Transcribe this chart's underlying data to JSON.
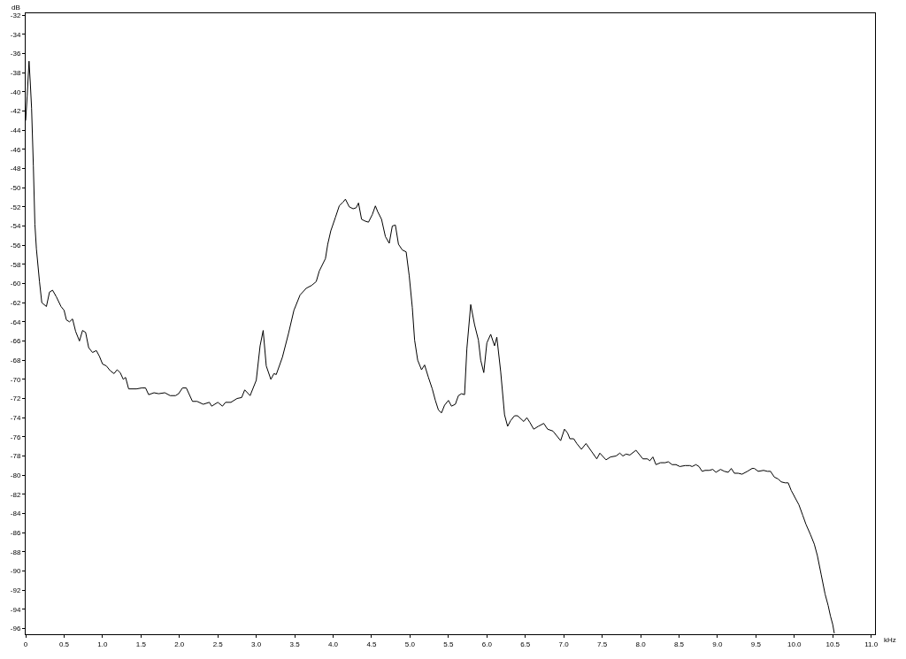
{
  "chart_data": {
    "type": "line",
    "xlabel": "kHz",
    "ylabel": "dB",
    "x": [
      0,
      0.02,
      0.044,
      0.06,
      0.077,
      0.1,
      0.12,
      0.14,
      0.18,
      0.21,
      0.27,
      0.31,
      0.35,
      0.4,
      0.46,
      0.5,
      0.53,
      0.57,
      0.61,
      0.65,
      0.7,
      0.74,
      0.78,
      0.82,
      0.87,
      0.92,
      0.96,
      1.0,
      1.05,
      1.1,
      1.15,
      1.19,
      1.23,
      1.27,
      1.3,
      1.34,
      1.44,
      1.51,
      1.56,
      1.6,
      1.67,
      1.73,
      1.81,
      1.88,
      1.95,
      1.99,
      2.04,
      2.09,
      2.17,
      2.23,
      2.31,
      2.39,
      2.42,
      2.5,
      2.56,
      2.6,
      2.67,
      2.75,
      2.81,
      2.85,
      2.92,
      3.0,
      3.05,
      3.09,
      3.13,
      3.19,
      3.23,
      3.26,
      3.34,
      3.42,
      3.49,
      3.57,
      3.65,
      3.72,
      3.78,
      3.82,
      3.9,
      3.93,
      3.97,
      4.03,
      4.08,
      4.13,
      4.16,
      4.21,
      4.26,
      4.3,
      4.33,
      4.37,
      4.42,
      4.46,
      4.51,
      4.55,
      4.58,
      4.63,
      4.68,
      4.73,
      4.77,
      4.81,
      4.85,
      4.9,
      4.95,
      4.99,
      5.03,
      5.06,
      5.1,
      5.15,
      5.19,
      5.24,
      5.29,
      5.33,
      5.37,
      5.41,
      5.45,
      5.5,
      5.54,
      5.59,
      5.63,
      5.67,
      5.71,
      5.74,
      5.79,
      5.84,
      5.89,
      5.92,
      5.96,
      6.0,
      6.05,
      6.1,
      6.13,
      6.18,
      6.23,
      6.27,
      6.31,
      6.36,
      6.4,
      6.48,
      6.52,
      6.56,
      6.61,
      6.67,
      6.74,
      6.79,
      6.86,
      6.96,
      7.01,
      7.05,
      7.08,
      7.13,
      7.17,
      7.23,
      7.29,
      7.36,
      7.43,
      7.47,
      7.55,
      7.61,
      7.68,
      7.73,
      7.77,
      7.81,
      7.86,
      7.94,
      8.03,
      8.09,
      8.12,
      8.16,
      8.2,
      8.26,
      8.32,
      8.36,
      8.41,
      8.46,
      8.51,
      8.58,
      8.64,
      8.67,
      8.72,
      8.76,
      8.8,
      8.84,
      8.89,
      8.94,
      8.98,
      9.04,
      9.09,
      9.14,
      9.18,
      9.22,
      9.27,
      9.32,
      9.39,
      9.45,
      9.48,
      9.53,
      9.6,
      9.65,
      9.69,
      9.74,
      9.79,
      9.83,
      9.88,
      9.92,
      9.96,
      10.0,
      10.06,
      10.11,
      10.15,
      10.21,
      10.26,
      10.3,
      10.35,
      10.4,
      10.44,
      10.47,
      10.5,
      10.52
    ],
    "series": [
      {
        "color": "#000000",
        "values": [
          -43,
          -40.4,
          -36.8,
          -39,
          -41.7,
          -47.7,
          -53.8,
          -56.4,
          -59.8,
          -62,
          -62.4,
          -60.9,
          -60.7,
          -61.4,
          -62.4,
          -62.8,
          -63.8,
          -64,
          -63.7,
          -65,
          -66,
          -64.9,
          -65.1,
          -66.7,
          -67.2,
          -67,
          -67.6,
          -68.4,
          -68.6,
          -69.1,
          -69.4,
          -69,
          -69.3,
          -70,
          -69.8,
          -71,
          -71,
          -70.9,
          -70.9,
          -71.6,
          -71.4,
          -71.5,
          -71.4,
          -71.7,
          -71.7,
          -71.5,
          -70.9,
          -70.9,
          -72.3,
          -72.3,
          -72.6,
          -72.4,
          -72.8,
          -72.4,
          -72.8,
          -72.4,
          -72.4,
          -72,
          -71.9,
          -71.1,
          -71.7,
          -70.1,
          -66.5,
          -64.9,
          -68.6,
          -70,
          -69.4,
          -69.5,
          -67.7,
          -65.2,
          -62.8,
          -61.2,
          -60.5,
          -60.2,
          -59.8,
          -58.7,
          -57.4,
          -55.9,
          -54.5,
          -53.1,
          -51.9,
          -51.5,
          -51.2,
          -52,
          -52.2,
          -52.1,
          -51.6,
          -53.3,
          -53.5,
          -53.6,
          -52.8,
          -51.9,
          -52.5,
          -53.3,
          -55.1,
          -55.8,
          -54,
          -53.9,
          -55.9,
          -56.5,
          -56.7,
          -59.2,
          -62.5,
          -65.9,
          -68,
          -69,
          -68.5,
          -69.8,
          -71,
          -72.2,
          -73.2,
          -73.5,
          -72.7,
          -72.2,
          -72.8,
          -72.6,
          -71.7,
          -71.5,
          -71.6,
          -66.8,
          -62.2,
          -64.3,
          -65.9,
          -68,
          -69.3,
          -66.2,
          -65.3,
          -66.5,
          -65.6,
          -69.2,
          -73.7,
          -74.9,
          -74.3,
          -73.8,
          -73.8,
          -74.4,
          -74,
          -74.5,
          -75.2,
          -74.9,
          -74.6,
          -75.2,
          -75.4,
          -76.4,
          -75.2,
          -75.6,
          -76.2,
          -76.2,
          -76.7,
          -77.3,
          -76.7,
          -77.5,
          -78.3,
          -77.7,
          -78.4,
          -78.1,
          -78,
          -77.7,
          -78,
          -77.8,
          -77.9,
          -77.4,
          -78.3,
          -78.3,
          -78.5,
          -78.1,
          -78.9,
          -78.7,
          -78.7,
          -78.6,
          -78.9,
          -78.9,
          -79.1,
          -79,
          -79,
          -79.1,
          -78.9,
          -79.1,
          -79.6,
          -79.5,
          -79.5,
          -79.4,
          -79.7,
          -79.4,
          -79.6,
          -79.7,
          -79.3,
          -79.8,
          -79.8,
          -79.9,
          -79.6,
          -79.3,
          -79.3,
          -79.6,
          -79.5,
          -79.6,
          -79.6,
          -80.2,
          -80.4,
          -80.7,
          -80.8,
          -80.8,
          -81.6,
          -82.2,
          -83.1,
          -84.2,
          -85.1,
          -86.2,
          -87.2,
          -88.4,
          -90.4,
          -92.4,
          -93.6,
          -94.7,
          -95.6,
          -96.5
        ]
      }
    ],
    "xlim": [
      0,
      11.05
    ],
    "ylim": [
      -96.6,
      -31.8
    ],
    "xticks": [
      0,
      {
        "value": 0.5,
        "label": "0.5"
      },
      {
        "value": 1,
        "label": "1.0"
      },
      {
        "value": 1.5,
        "label": "1.5"
      },
      {
        "value": 2,
        "label": "2.0"
      },
      {
        "value": 2.5,
        "label": "2.5"
      },
      {
        "value": 3,
        "label": "3.0"
      },
      {
        "value": 3.5,
        "label": "3.5"
      },
      {
        "value": 4,
        "label": "4.0"
      },
      {
        "value": 4.5,
        "label": "4.5"
      },
      {
        "value": 5,
        "label": "5.0"
      },
      {
        "value": 5.5,
        "label": "5.5"
      },
      {
        "value": 6,
        "label": "6.0"
      },
      {
        "value": 6.5,
        "label": "6.5"
      },
      {
        "value": 7,
        "label": "7.0"
      },
      {
        "value": 7.5,
        "label": "7.5"
      },
      {
        "value": 8,
        "label": "8.0"
      },
      {
        "value": 8.5,
        "label": "8.5"
      },
      {
        "value": 9,
        "label": "9.0"
      },
      {
        "value": 9.5,
        "label": "9.5"
      },
      {
        "value": 10,
        "label": "10.0"
      },
      {
        "value": 10.5,
        "label": "10.5"
      },
      {
        "value": 11,
        "label": "11.0"
      }
    ],
    "yticks": [
      -32,
      -34,
      -36,
      -38,
      -40,
      -42,
      -44,
      -46,
      -48,
      -50,
      -52,
      -54,
      -56,
      -58,
      -60,
      -62,
      -64,
      -66,
      -68,
      -70,
      -72,
      -74,
      -76,
      -78,
      -80,
      -82,
      -84,
      -86,
      -88,
      -90,
      -92,
      -94,
      -96
    ],
    "marker": "none",
    "line_style": "solid"
  }
}
